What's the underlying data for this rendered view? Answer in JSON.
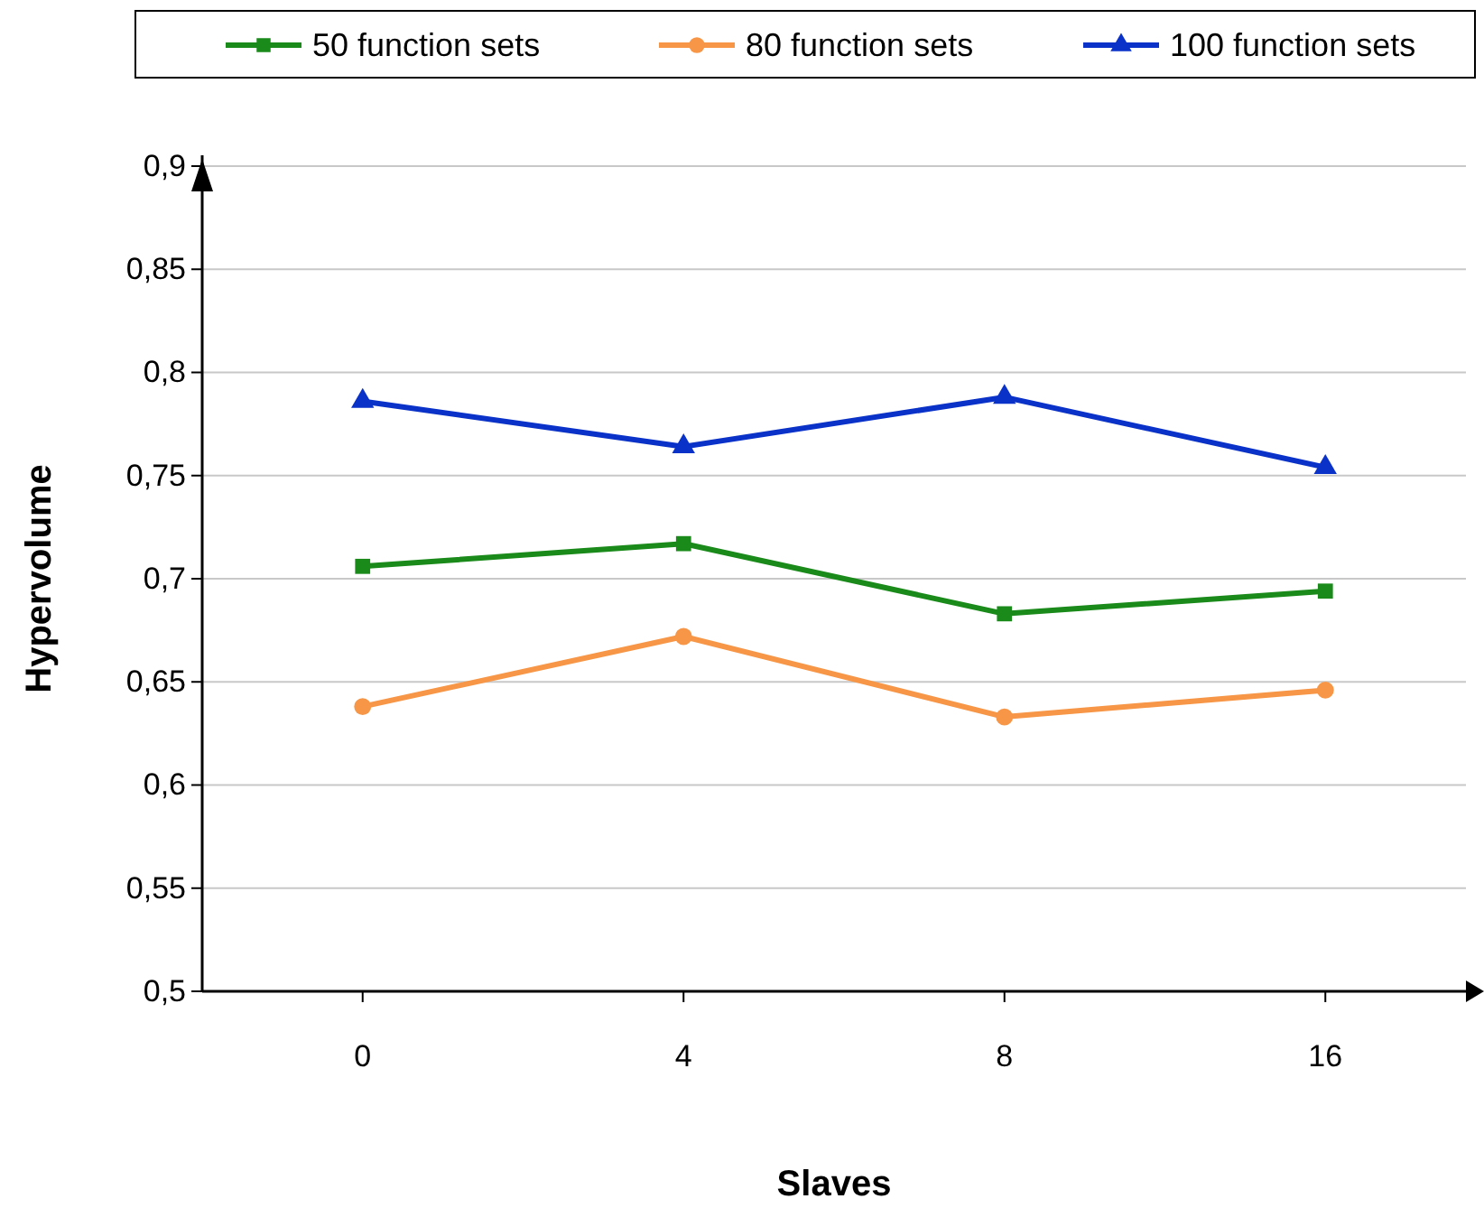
{
  "chart_data": {
    "type": "line",
    "xlabel": "Slaves",
    "ylabel": "Hypervolume",
    "categories": [
      "0",
      "4",
      "8",
      "16"
    ],
    "series": [
      {
        "name": "50 function sets",
        "color": "#1a8a1a",
        "marker": "square",
        "values": [
          0.706,
          0.717,
          0.683,
          0.694
        ]
      },
      {
        "name": "80 function sets",
        "color": "#f79646",
        "marker": "circle",
        "values": [
          0.638,
          0.672,
          0.633,
          0.646
        ]
      },
      {
        "name": "100 function sets",
        "color": "#0a32c8",
        "marker": "triangle",
        "values": [
          0.786,
          0.764,
          0.788,
          0.754
        ]
      }
    ],
    "ylim": [
      0.5,
      0.9
    ],
    "yticks": [
      {
        "value": 0.5,
        "label": "0,5"
      },
      {
        "value": 0.55,
        "label": "0,55"
      },
      {
        "value": 0.6,
        "label": "0,6"
      },
      {
        "value": 0.65,
        "label": "0,65"
      },
      {
        "value": 0.7,
        "label": "0,7"
      },
      {
        "value": 0.75,
        "label": "0,75"
      },
      {
        "value": 0.8,
        "label": "0,8"
      },
      {
        "value": 0.85,
        "label": "0,85"
      },
      {
        "value": 0.9,
        "label": "0,9"
      }
    ],
    "grid": "y",
    "legend": "top",
    "line_style": "solid"
  }
}
